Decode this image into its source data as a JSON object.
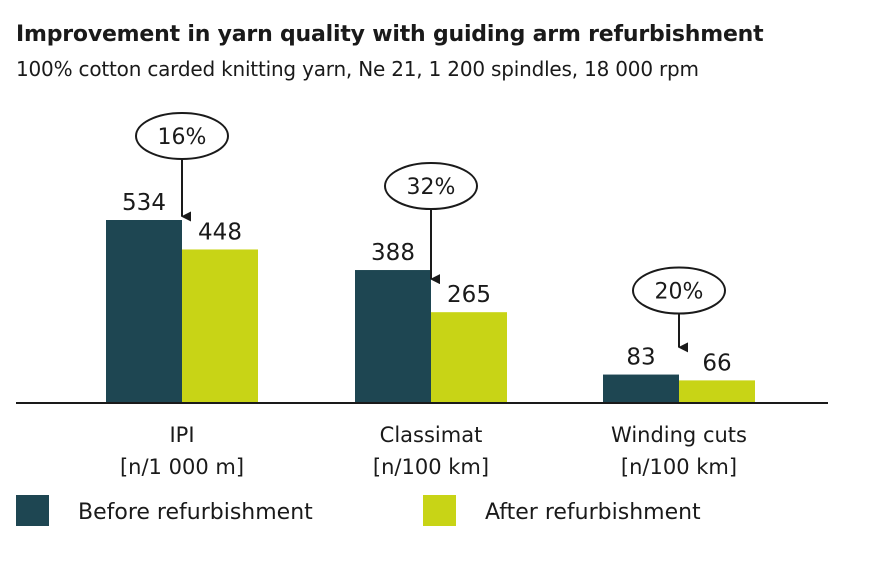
{
  "title": "Improvement in yarn quality with guiding arm refurbishment",
  "subtitle": "100% cotton carded knitting yarn, Ne 21, 1 200 spindles, 18 000 rpm",
  "colors": {
    "before": "#1e4652",
    "after": "#c8d416",
    "text": "#1a1a1a"
  },
  "chart_data": {
    "type": "bar",
    "title": "Improvement in yarn quality with guiding arm refurbishment",
    "subtitle": "100% cotton carded knitting yarn, Ne 21, 1 200 spindles, 18 000 rpm",
    "categories": [
      {
        "name": "IPI",
        "unit": "[n/1 000 m]"
      },
      {
        "name": "Classimat",
        "unit": "[n/100 km]"
      },
      {
        "name": "Winding cuts",
        "unit": "[n/100 km]"
      }
    ],
    "series": [
      {
        "name": "Before refurbishment",
        "values": [
          534,
          388,
          83
        ]
      },
      {
        "name": "After refurbishment",
        "values": [
          448,
          265,
          66
        ]
      }
    ],
    "annotations": [
      "16%",
      "32%",
      "20%"
    ],
    "ylim": [
      0,
      534
    ],
    "grid": false,
    "legend": "bottom"
  }
}
